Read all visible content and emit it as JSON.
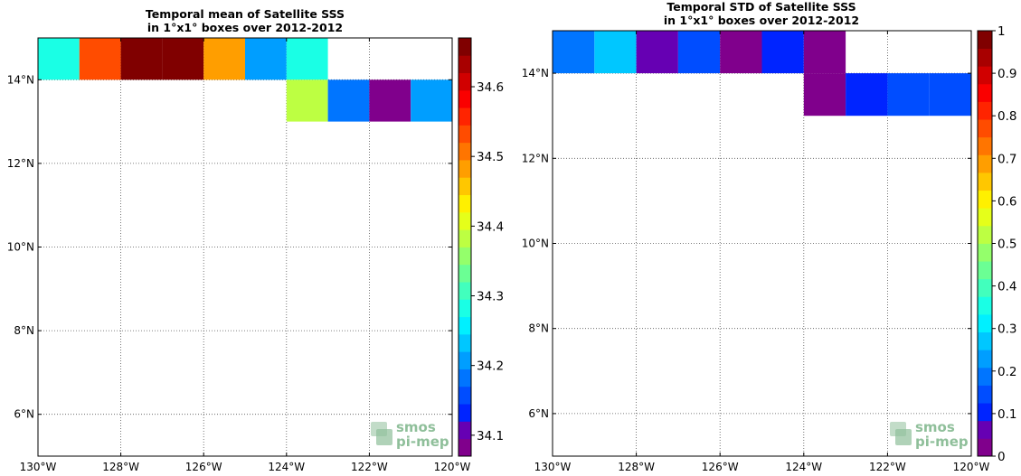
{
  "chart_data": [
    {
      "type": "heatmap",
      "title": "Temporal mean of Satellite SSS",
      "subtitle": "in 1°x1° boxes over 2012-2012",
      "xlim": [
        -130,
        -120
      ],
      "ylim": [
        5,
        15
      ],
      "xticks": [
        -130,
        -128,
        -126,
        -124,
        -122,
        -120
      ],
      "xtick_labels": [
        "130°W",
        "128°W",
        "126°W",
        "124°W",
        "122°W",
        "120°W"
      ],
      "yticks": [
        6,
        8,
        10,
        12,
        14
      ],
      "ytick_labels": [
        "6°N",
        "8°N",
        "10°N",
        "12°N",
        "14°N"
      ],
      "grid": true,
      "colorbar": {
        "range": [
          34.07,
          34.67
        ],
        "ticks": [
          34.1,
          34.2,
          34.3,
          34.4,
          34.5,
          34.6
        ],
        "tick_labels": [
          "34.1",
          "34.2",
          "34.3",
          "34.4",
          "34.5",
          "34.6"
        ]
      },
      "cells": [
        {
          "lon": -130,
          "lat": 14,
          "value": 34.28
        },
        {
          "lon": -129,
          "lat": 14,
          "value": 34.53
        },
        {
          "lon": -128,
          "lat": 14,
          "value": 34.66
        },
        {
          "lon": -127,
          "lat": 14,
          "value": 34.66
        },
        {
          "lon": -126,
          "lat": 14,
          "value": 34.49
        },
        {
          "lon": -125,
          "lat": 14,
          "value": 34.22
        },
        {
          "lon": -124,
          "lat": 14,
          "value": 34.28
        },
        {
          "lon": -124,
          "lat": 13,
          "value": 34.38
        },
        {
          "lon": -123,
          "lat": 13,
          "value": 34.18
        },
        {
          "lon": -122,
          "lat": 13,
          "value": 34.09
        },
        {
          "lon": -121,
          "lat": 13,
          "value": 34.21
        }
      ],
      "logo": {
        "line1": "smos",
        "line2": "pi-mep"
      }
    },
    {
      "type": "heatmap",
      "title": "Temporal STD of Satellite SSS",
      "subtitle": "in 1°x1° boxes over 2012-2012",
      "xlim": [
        -130,
        -120
      ],
      "ylim": [
        5,
        15
      ],
      "xticks": [
        -130,
        -128,
        -126,
        -124,
        -122,
        -120
      ],
      "xtick_labels": [
        "130°W",
        "128°W",
        "126°W",
        "124°W",
        "122°W",
        "120°W"
      ],
      "yticks": [
        6,
        8,
        10,
        12,
        14
      ],
      "ytick_labels": [
        "6°N",
        "8°N",
        "10°N",
        "12°N",
        "14°N"
      ],
      "grid": true,
      "colorbar": {
        "range": [
          0,
          1
        ],
        "ticks": [
          0,
          0.1,
          0.2,
          0.3,
          0.4,
          0.5,
          0.6,
          0.7,
          0.8,
          0.9,
          1
        ],
        "tick_labels": [
          "0",
          "0.1",
          "0.2",
          "0.3",
          "0.4",
          "0.5",
          "0.6",
          "0.7",
          "0.8",
          "0.9",
          "1"
        ]
      },
      "cells": [
        {
          "lon": -130,
          "lat": 14,
          "value": 0.19
        },
        {
          "lon": -129,
          "lat": 14,
          "value": 0.28
        },
        {
          "lon": -128,
          "lat": 14,
          "value": 0.08
        },
        {
          "lon": -127,
          "lat": 14,
          "value": 0.15
        },
        {
          "lon": -126,
          "lat": 14,
          "value": 0.04
        },
        {
          "lon": -125,
          "lat": 14,
          "value": 0.09
        },
        {
          "lon": -124,
          "lat": 14,
          "value": 0.04
        },
        {
          "lon": -124,
          "lat": 13,
          "value": 0.04
        },
        {
          "lon": -123,
          "lat": 13,
          "value": 0.09
        },
        {
          "lon": -122,
          "lat": 13,
          "value": 0.15
        },
        {
          "lon": -121,
          "lat": 13,
          "value": 0.15
        }
      ],
      "logo": {
        "line1": "smos",
        "line2": "pi-mep"
      }
    }
  ]
}
